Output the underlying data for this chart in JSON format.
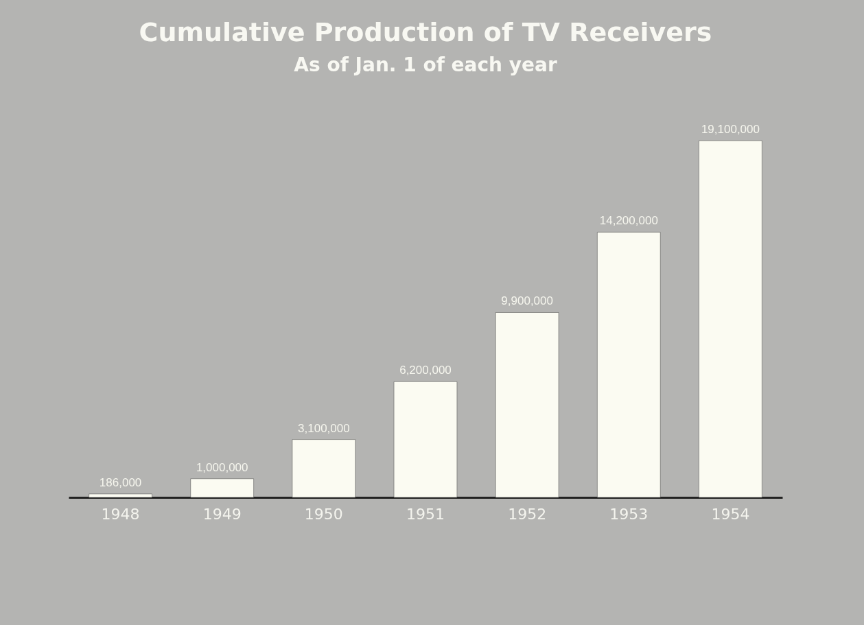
{
  "chart_data": {
    "type": "bar",
    "title": "Cumulative Production of TV Receivers",
    "subtitle": "As of Jan. 1 of each year",
    "categories": [
      "1948",
      "1949",
      "1950",
      "1951",
      "1952",
      "1953",
      "1954"
    ],
    "values": [
      186000,
      1000000,
      3100000,
      6200000,
      9900000,
      14200000,
      19100000
    ],
    "value_labels": [
      "186,000",
      "1,000,000",
      "3,100,000",
      "6,200,000",
      "9,900,000",
      "14,200,000",
      "19,100,000"
    ],
    "color": "#fbfbf2"
  }
}
